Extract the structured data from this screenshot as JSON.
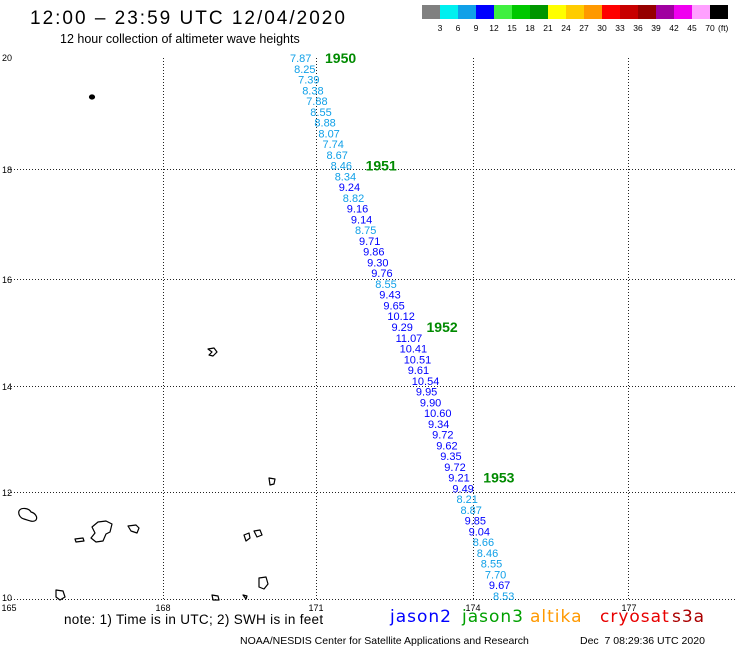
{
  "header": {
    "title": "12:00 – 23:59 UTC 12/04/2020",
    "subtitle": "12 hour collection of altimeter wave heights"
  },
  "legend": {
    "colors": [
      "#808080",
      "#00f0f0",
      "#10a0e8",
      "#0000ff",
      "#40f040",
      "#00c800",
      "#009600",
      "#ffff00",
      "#ffcc00",
      "#ff9900",
      "#ff0000",
      "#c80000",
      "#960000",
      "#a000a0",
      "#f000f0",
      "#ffa0ff",
      "#000000"
    ],
    "tick_labels": [
      "3",
      "6",
      "9",
      "12",
      "15",
      "18",
      "21",
      "24",
      "27",
      "30",
      "33",
      "36",
      "39",
      "42",
      "45",
      "70"
    ],
    "unit": "(ft)"
  },
  "map": {
    "lat_ticks": [
      "20",
      "18",
      "16",
      "14",
      "12",
      "10"
    ],
    "lon_ticks": [
      "165",
      "168",
      "171",
      "174",
      "177"
    ],
    "pass_time_color": "#008a00"
  },
  "track": {
    "points": [
      {
        "swh": "7.87",
        "time": "1950"
      },
      {
        "swh": "8.25"
      },
      {
        "swh": "7.39"
      },
      {
        "swh": "8.38"
      },
      {
        "swh": "7.88"
      },
      {
        "swh": "8.55"
      },
      {
        "swh": "8.88"
      },
      {
        "swh": "8.07"
      },
      {
        "swh": "7.74"
      },
      {
        "swh": "8.67"
      },
      {
        "swh": "8.46",
        "time": "1951"
      },
      {
        "swh": "8.34"
      },
      {
        "swh": "9.24"
      },
      {
        "swh": "8.82"
      },
      {
        "swh": "9.16"
      },
      {
        "swh": "9.14"
      },
      {
        "swh": "8.75"
      },
      {
        "swh": "9.71"
      },
      {
        "swh": "9.86"
      },
      {
        "swh": "9.30"
      },
      {
        "swh": "9.76"
      },
      {
        "swh": "8.55"
      },
      {
        "swh": "9.43"
      },
      {
        "swh": "9.65"
      },
      {
        "swh": "10.12"
      },
      {
        "swh": "9.29",
        "time": "1952"
      },
      {
        "swh": "11.07"
      },
      {
        "swh": "10.41"
      },
      {
        "swh": "10.51"
      },
      {
        "swh": "9.61"
      },
      {
        "swh": "10.54"
      },
      {
        "swh": "9.95"
      },
      {
        "swh": "9.90"
      },
      {
        "swh": "10.60"
      },
      {
        "swh": "9.34"
      },
      {
        "swh": "9.72"
      },
      {
        "swh": "9.62"
      },
      {
        "swh": "9.35"
      },
      {
        "swh": "9.72"
      },
      {
        "swh": "9.21",
        "time": "1953"
      },
      {
        "swh": "9.49"
      },
      {
        "swh": "8.21"
      },
      {
        "swh": "8.87"
      },
      {
        "swh": "9.85"
      },
      {
        "swh": "9.04"
      },
      {
        "swh": "8.66"
      },
      {
        "swh": "8.46"
      },
      {
        "swh": "8.55"
      },
      {
        "swh": "7.70"
      },
      {
        "swh": "9.67"
      },
      {
        "swh": "8.53"
      }
    ]
  },
  "footer": {
    "note": "note: 1) Time is in UTC; 2) SWH is in feet",
    "satellites": [
      {
        "name": "jason2",
        "color": "#0000ff"
      },
      {
        "name": "jason3",
        "color": "#00a000"
      },
      {
        "name": "altika",
        "color": "#ff9900"
      },
      {
        "name": "cryosat",
        "color": "#e80000"
      },
      {
        "name": "s3a",
        "color": "#aa0000"
      }
    ],
    "credit": "NOAA/NESDIS Center for Satellite Applications and Research",
    "generated": "Dec  7 08:29:36 UTC 2020"
  }
}
